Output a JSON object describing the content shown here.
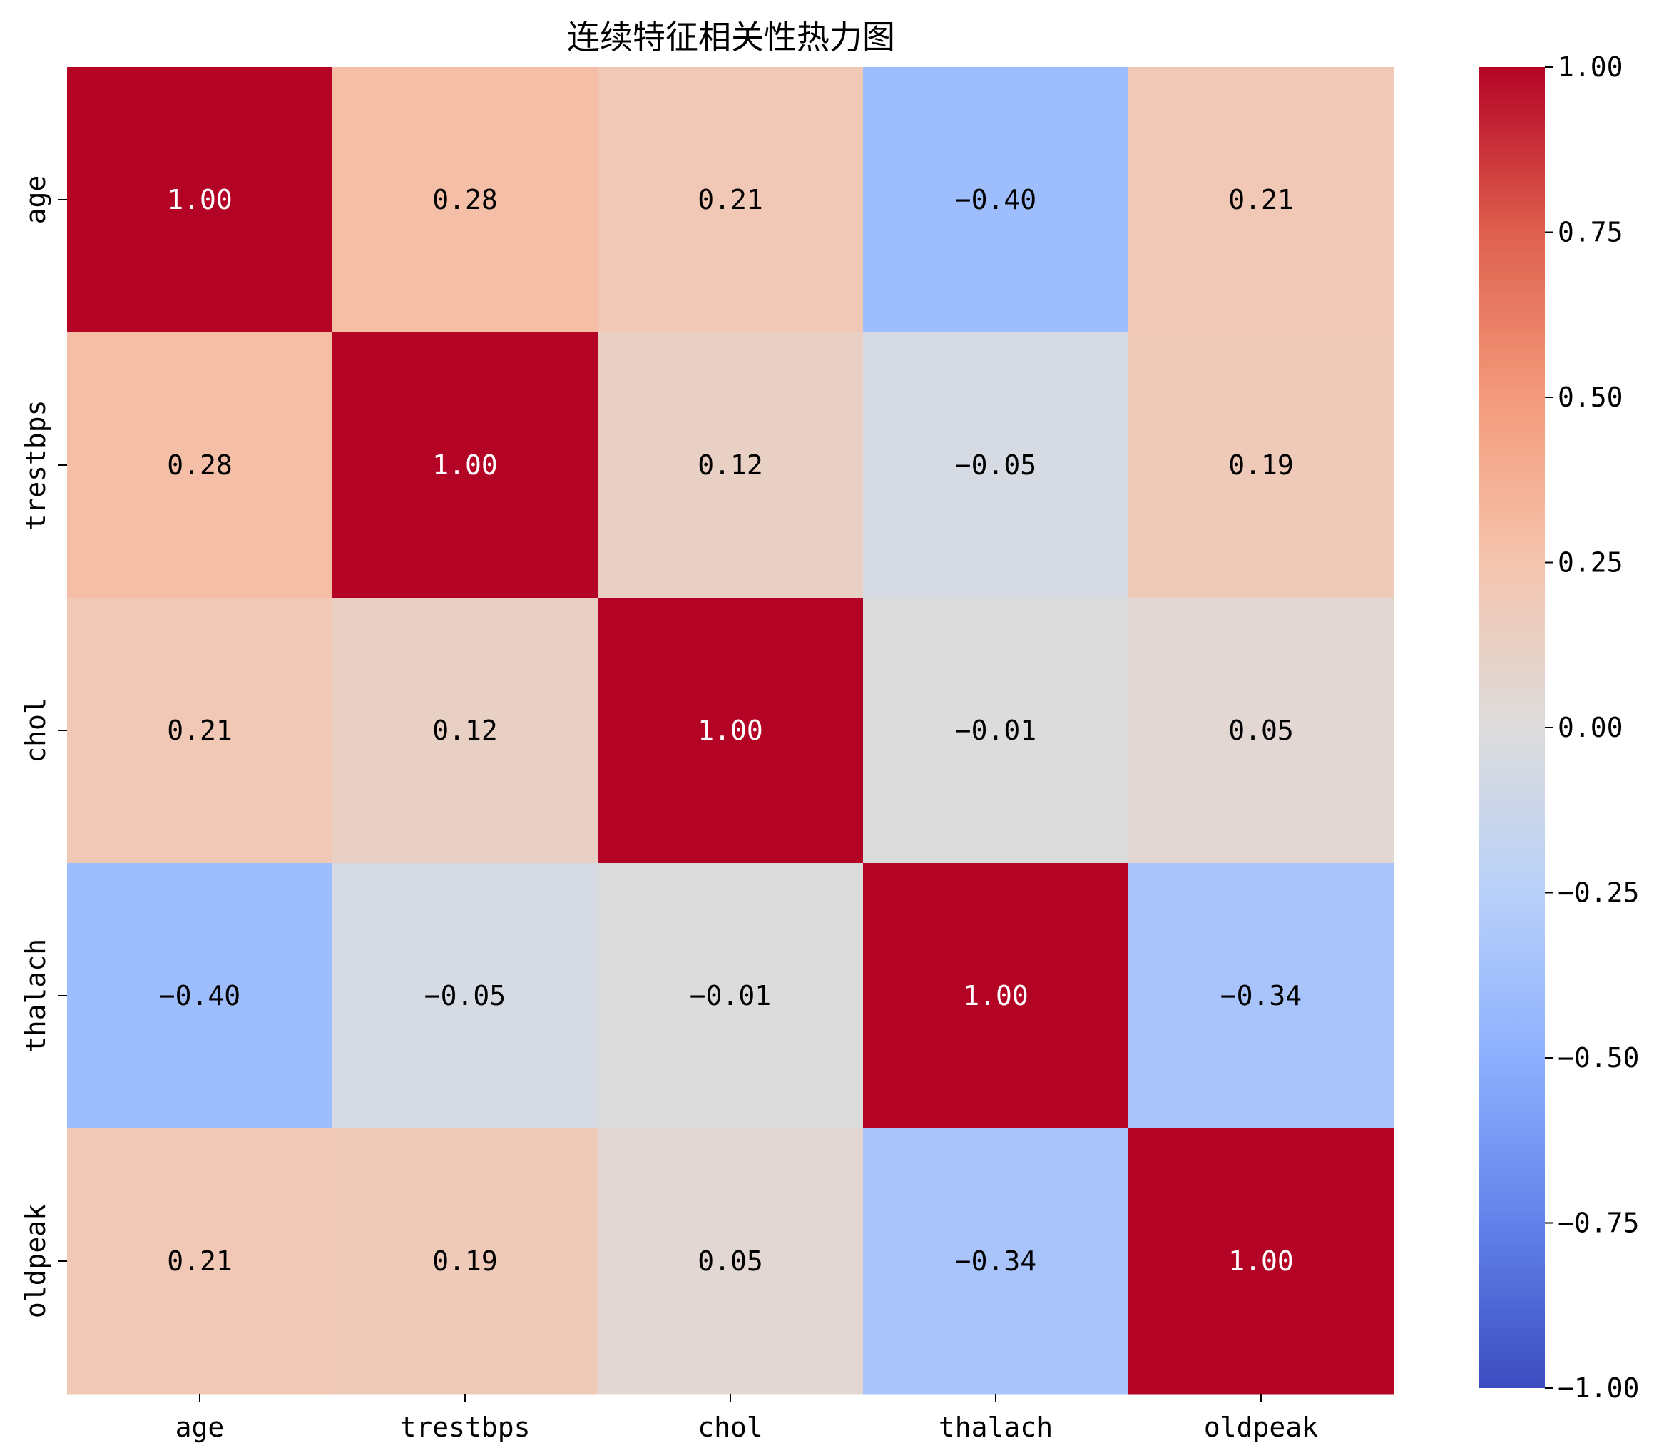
{
  "chart_data": {
    "type": "heatmap",
    "title": "连续特征相关性热力图",
    "x_categories": [
      "age",
      "trestbps",
      "chol",
      "thalach",
      "oldpeak"
    ],
    "y_categories": [
      "age",
      "trestbps",
      "chol",
      "thalach",
      "oldpeak"
    ],
    "values": [
      [
        1.0,
        0.28,
        0.21,
        -0.4,
        0.21
      ],
      [
        0.28,
        1.0,
        0.12,
        -0.05,
        0.19
      ],
      [
        0.21,
        0.12,
        1.0,
        -0.01,
        0.05
      ],
      [
        -0.4,
        -0.05,
        -0.01,
        1.0,
        -0.34
      ],
      [
        0.21,
        0.19,
        0.05,
        -0.34,
        1.0
      ]
    ],
    "value_format_decimals": 2,
    "colormap": "coolwarm",
    "colorbar": {
      "range": [
        -1.0,
        1.0
      ],
      "ticks": [
        1.0,
        0.75,
        0.5,
        0.25,
        0.0,
        -0.25,
        -0.5,
        -0.75,
        -1.0
      ],
      "tick_labels": [
        "1.00",
        "0.75",
        "0.50",
        "0.25",
        "0.00",
        "−0.25",
        "−0.50",
        "−0.75",
        "−1.00"
      ]
    },
    "colors": {
      "low": "#3b4cc0",
      "mid": "#dddcdc",
      "high": "#b40426"
    }
  }
}
